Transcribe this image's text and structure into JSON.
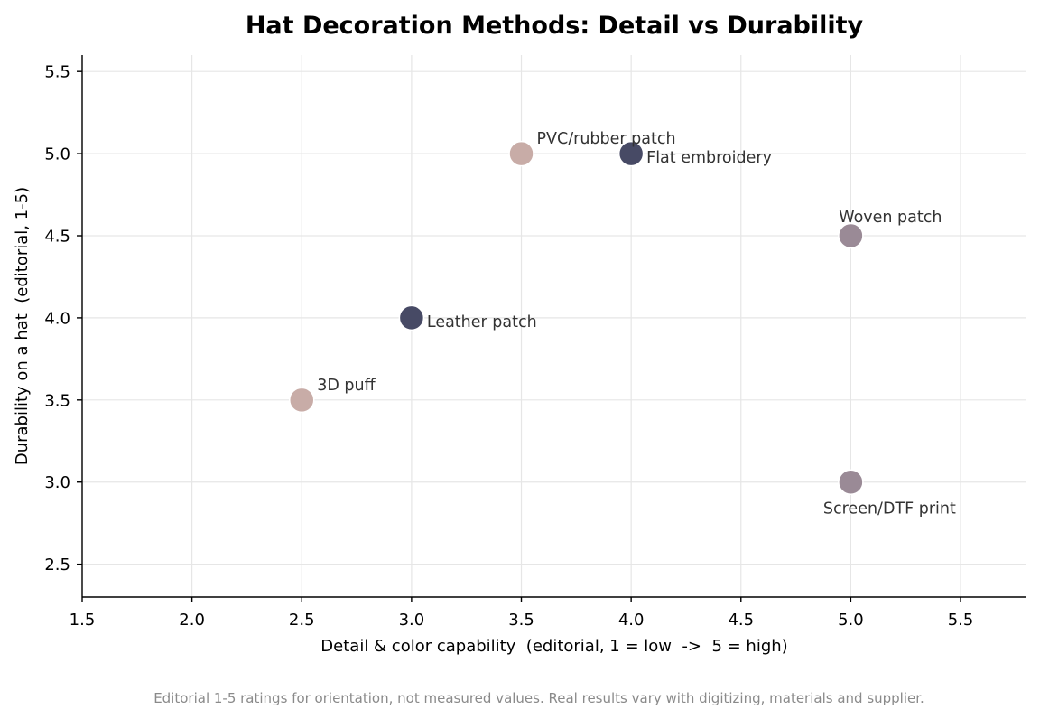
{
  "chart_data": {
    "type": "scatter",
    "title": "Hat Decoration Methods: Detail vs Durability",
    "xlabel": "Detail & color capability  (editorial, 1 = low  ->  5 = high)",
    "ylabel": "Durability on a hat  (editorial, 1-5)",
    "xlim": [
      1.5,
      5.8
    ],
    "ylim": [
      2.3,
      5.6
    ],
    "xticks": [
      "1.5",
      "2.0",
      "2.5",
      "3.0",
      "3.5",
      "4.0",
      "4.5",
      "5.0",
      "5.5"
    ],
    "yticks": [
      "2.5",
      "3.0",
      "3.5",
      "4.0",
      "4.5",
      "5.0",
      "5.5"
    ],
    "grid": true,
    "points": [
      {
        "label": "Flat embroidery",
        "x": 4.0,
        "y": 5.0,
        "color": "#474a65",
        "label_pos": "right-below"
      },
      {
        "label": "3D puff",
        "x": 2.5,
        "y": 3.5,
        "color": "#c8aca7",
        "label_pos": "right-above"
      },
      {
        "label": "Woven patch",
        "x": 5.0,
        "y": 4.5,
        "color": "#9a8a96",
        "label_pos": "above"
      },
      {
        "label": "PVC/rubber patch",
        "x": 3.5,
        "y": 5.0,
        "color": "#c8aca7",
        "label_pos": "right-above"
      },
      {
        "label": "Leather patch",
        "x": 3.0,
        "y": 4.0,
        "color": "#474a65",
        "label_pos": "right-below"
      },
      {
        "label": "Screen/DTF print",
        "x": 5.0,
        "y": 3.0,
        "color": "#9a8a96",
        "label_pos": "below"
      }
    ],
    "footnote": "Editorial 1-5 ratings for orientation, not measured values. Real results vary with digitizing, materials and supplier."
  }
}
